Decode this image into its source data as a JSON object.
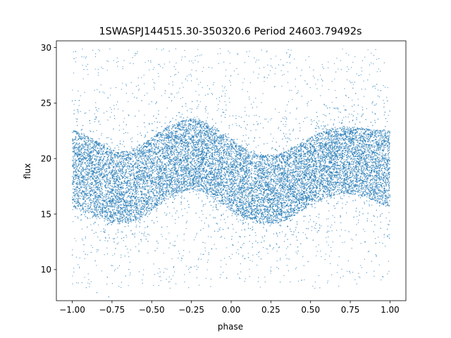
{
  "chart_data": {
    "type": "scatter",
    "title": "1SWASPJ144515.30-350320.6 Period 24603.79492s",
    "xlabel": "phase",
    "ylabel": "flux",
    "xlim": [
      -1.1,
      1.1
    ],
    "ylim": [
      7.2,
      30.6
    ],
    "xticks": [
      -1.0,
      -0.75,
      -0.5,
      -0.25,
      0.0,
      0.25,
      0.5,
      0.75,
      1.0
    ],
    "xtick_labels": [
      "−1.00",
      "−0.75",
      "−0.50",
      "−0.25",
      "0.00",
      "0.25",
      "0.50",
      "0.75",
      "1.00"
    ],
    "yticks": [
      10,
      15,
      20,
      25,
      30
    ],
    "ytick_labels": [
      "10",
      "15",
      "20",
      "25",
      "30"
    ],
    "grid": false,
    "series_color": "#1f77b4",
    "series": [
      {
        "x": [
          -1.0,
          -0.95,
          -0.9,
          -0.85,
          -0.8,
          -0.75,
          -0.7,
          -0.65,
          -0.6,
          -0.55,
          -0.5,
          -0.45,
          -0.4,
          -0.35,
          -0.3,
          -0.25,
          -0.2,
          -0.15,
          -0.1,
          -0.05,
          0.0,
          0.05,
          0.1,
          0.15,
          0.2,
          0.25,
          0.3,
          0.35,
          0.4,
          0.45,
          0.5,
          0.55,
          0.6,
          0.65,
          0.7,
          0.75,
          0.8,
          0.85,
          0.9,
          0.95,
          1.0
        ],
        "y_mean": [
          19.1,
          18.8,
          18.4,
          18.0,
          17.6,
          17.3,
          17.1,
          17.2,
          17.4,
          17.8,
          18.3,
          18.8,
          19.3,
          19.7,
          19.9,
          20.0,
          19.9,
          19.6,
          19.2,
          18.8,
          18.3,
          17.9,
          17.5,
          17.2,
          17.1,
          17.1,
          17.2,
          17.5,
          17.9,
          18.3,
          18.7,
          19.1,
          19.4,
          19.6,
          19.7,
          19.7,
          19.6,
          19.5,
          19.3,
          19.2,
          19.1
        ],
        "y_min": [
          15.6,
          15.3,
          15.0,
          14.7,
          14.4,
          14.2,
          14.1,
          14.2,
          14.4,
          14.8,
          15.3,
          15.8,
          16.3,
          16.8,
          17.1,
          17.2,
          17.1,
          16.8,
          16.3,
          15.8,
          15.3,
          14.9,
          14.5,
          14.2,
          14.1,
          14.1,
          14.2,
          14.5,
          14.9,
          15.3,
          15.7,
          16.1,
          16.5,
          16.7,
          16.8,
          16.8,
          16.7,
          16.5,
          16.2,
          15.9,
          15.6
        ],
        "y_max": [
          22.6,
          22.4,
          22.0,
          21.6,
          21.2,
          20.8,
          20.6,
          20.7,
          21.0,
          21.4,
          21.9,
          22.4,
          22.9,
          23.2,
          23.5,
          23.6,
          23.5,
          23.2,
          22.8,
          22.3,
          21.8,
          21.3,
          20.8,
          20.5,
          20.3,
          20.3,
          20.4,
          20.7,
          21.1,
          21.5,
          21.9,
          22.3,
          22.6,
          22.8,
          22.9,
          22.9,
          22.8,
          22.7,
          22.6,
          22.6,
          22.6
        ],
        "outlier_range": [
          8.3,
          29.9
        ]
      }
    ]
  }
}
